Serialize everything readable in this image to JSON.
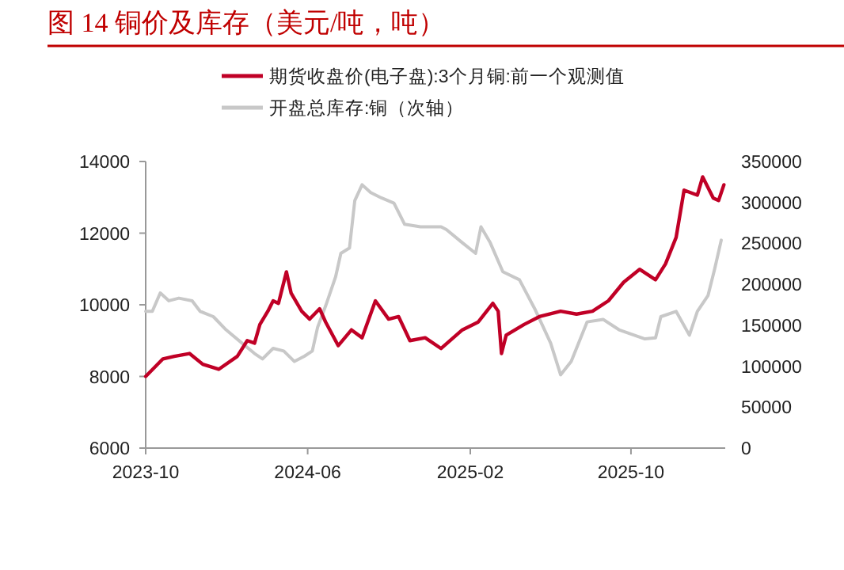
{
  "chart_data": {
    "type": "line",
    "title": "图 14 铜价及库存（美元/吨，吨）",
    "legend": "top",
    "grid": false,
    "xlim": [
      "2023-10-01",
      "2026-02-20"
    ],
    "xticks": [
      "2023-10",
      "2024-06",
      "2025-02",
      "2025-10"
    ],
    "ylim": [
      6000,
      14000
    ],
    "yticks": [
      6000,
      8000,
      10000,
      12000,
      14000
    ],
    "y2lim": [
      0,
      350000
    ],
    "y2ticks": [
      0,
      50000,
      100000,
      150000,
      200000,
      250000,
      300000,
      350000
    ],
    "series": [
      {
        "name": "期货收盘价(电子盘):3个月铜:前一个观测值",
        "color": "#c00026",
        "x": [
          "2023-10-01",
          "2023-10-27",
          "2023-11-13",
          "2023-12-06",
          "2023-12-26",
          "2024-01-19",
          "2024-02-16",
          "2024-03-02",
          "2024-03-13",
          "2024-03-21",
          "2024-04-02",
          "2024-04-10",
          "2024-04-18",
          "2024-04-30",
          "2024-05-07",
          "2024-05-23",
          "2024-06-04",
          "2024-06-19",
          "2024-06-28",
          "2024-07-17",
          "2024-08-06",
          "2024-08-22",
          "2024-09-11",
          "2024-10-01",
          "2024-10-16",
          "2024-11-02",
          "2024-11-25",
          "2024-12-19",
          "2025-01-20",
          "2025-02-13",
          "2025-03-07",
          "2025-03-15",
          "2025-03-20",
          "2025-03-27",
          "2025-04-23",
          "2025-05-16",
          "2025-06-17",
          "2025-07-11",
          "2025-08-04",
          "2025-08-28",
          "2025-09-20",
          "2025-10-14",
          "2025-11-07",
          "2025-11-22",
          "2025-12-08",
          "2025-12-20",
          "2026-01-09",
          "2026-01-17",
          "2026-02-02",
          "2026-02-10",
          "2026-02-18"
        ],
        "values": [
          8000,
          8490,
          8560,
          8640,
          8340,
          8200,
          8560,
          9000,
          8930,
          9450,
          9820,
          10110,
          10040,
          10920,
          10330,
          9820,
          9600,
          9890,
          9520,
          8860,
          9300,
          9080,
          10110,
          9600,
          9670,
          9000,
          9080,
          8780,
          9300,
          9520,
          10040,
          9820,
          8640,
          9150,
          9450,
          9670,
          9820,
          9740,
          9820,
          10110,
          10630,
          10990,
          10700,
          11140,
          11880,
          13200,
          13060,
          13570,
          12980,
          12910,
          13350
        ]
      },
      {
        "name": "开盘总库存:铜（次轴）",
        "color": "#c8c8c8",
        "axis": "y2",
        "x": [
          "2023-10-01",
          "2023-10-11",
          "2023-10-23",
          "2023-11-05",
          "2023-11-20",
          "2023-12-10",
          "2023-12-22",
          "2024-01-11",
          "2024-01-30",
          "2024-02-23",
          "2024-03-13",
          "2024-03-25",
          "2024-04-10",
          "2024-04-26",
          "2024-05-12",
          "2024-05-27",
          "2024-06-08",
          "2024-06-16",
          "2024-06-28",
          "2024-07-13",
          "2024-07-21",
          "2024-08-03",
          "2024-08-11",
          "2024-08-22",
          "2024-09-04",
          "2024-09-20",
          "2024-10-09",
          "2024-10-25",
          "2024-11-18",
          "2024-12-19",
          "2024-12-27",
          "2025-01-20",
          "2025-02-09",
          "2025-02-17",
          "2025-03-03",
          "2025-03-22",
          "2025-04-16",
          "2025-05-09",
          "2025-06-02",
          "2025-06-17",
          "2025-07-03",
          "2025-07-27",
          "2025-08-20",
          "2025-09-13",
          "2025-10-22",
          "2025-11-07",
          "2025-11-15",
          "2025-12-08",
          "2025-12-28",
          "2026-01-09",
          "2026-01-25",
          "2026-02-04",
          "2026-02-14"
        ],
        "values": [
          167000,
          167000,
          189500,
          179900,
          183100,
          179900,
          167000,
          160500,
          144500,
          128200,
          115500,
          108900,
          121800,
          118600,
          105800,
          112200,
          118600,
          147600,
          173500,
          208900,
          237900,
          244300,
          302300,
          321600,
          312000,
          305600,
          299200,
          273300,
          270200,
          270200,
          266900,
          250800,
          237900,
          270200,
          250800,
          215300,
          205600,
          170200,
          128200,
          89500,
          105800,
          154100,
          157200,
          144500,
          133400,
          134700,
          160500,
          167000,
          137900,
          167000,
          186200,
          218500,
          253900
        ]
      }
    ]
  }
}
